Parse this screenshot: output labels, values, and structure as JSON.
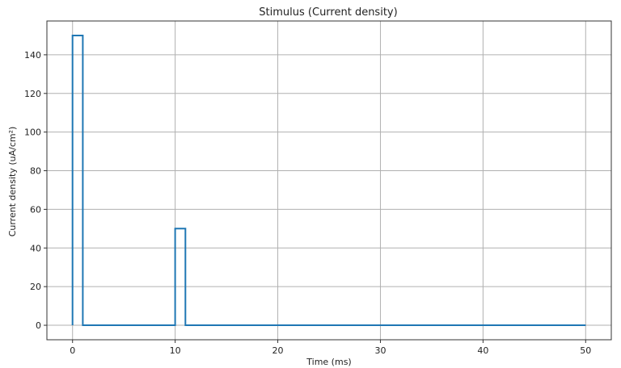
{
  "chart_data": {
    "type": "line",
    "title": "Stimulus (Current density)",
    "xlabel": "Time (ms)",
    "ylabel": "Current density (uA/cm²)",
    "xlim": [
      -2.5,
      52.5
    ],
    "ylim": [
      -7.5,
      157.5
    ],
    "x_ticks": [
      0,
      10,
      20,
      30,
      40,
      50
    ],
    "y_ticks": [
      0,
      20,
      40,
      60,
      80,
      100,
      120,
      140
    ],
    "grid": true,
    "series": [
      {
        "color": "#1f77b4",
        "x": [
          0,
          0,
          1,
          1,
          10,
          10,
          11,
          11,
          50
        ],
        "y": [
          0,
          150,
          150,
          0,
          0,
          50,
          50,
          0,
          0
        ]
      }
    ]
  }
}
